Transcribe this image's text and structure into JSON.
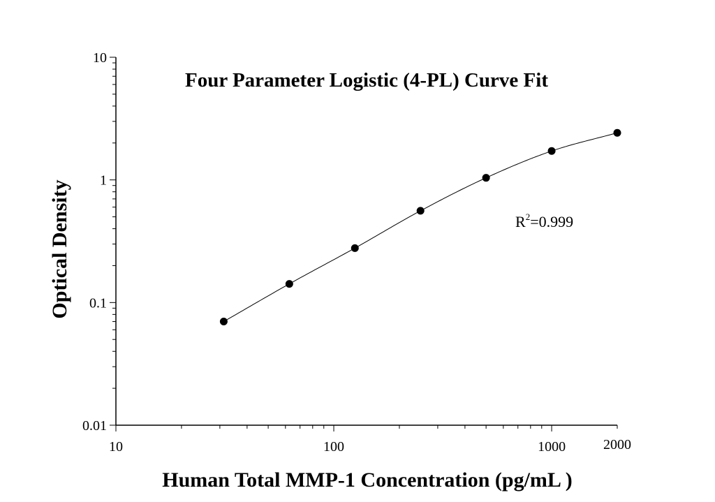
{
  "chart_data": {
    "type": "scatter",
    "title": "Four Parameter Logistic (4-PL) Curve Fit",
    "xlabel": "Human Total MMP-1 Concentration (pg/mL )",
    "ylabel": "Optical Density",
    "xscale": "log",
    "yscale": "log",
    "xlim": [
      10,
      2000
    ],
    "ylim": [
      0.01,
      10
    ],
    "x_tick_labels": [
      "10",
      "100",
      "1000",
      "2000"
    ],
    "y_tick_labels": [
      "0.01",
      "0.1",
      "1",
      "10"
    ],
    "series": [
      {
        "x": [
          31.25,
          62.5,
          125,
          250,
          500,
          1000,
          2000
        ],
        "y": [
          0.07,
          0.142,
          0.278,
          0.56,
          1.04,
          1.72,
          2.42
        ]
      }
    ],
    "fit_curve": "4-PL",
    "annotation": {
      "r_label": "R",
      "r_superscript": "2",
      "r_value": "=0.999"
    },
    "grid": false,
    "legend": "none",
    "colors": {
      "points": "#000000",
      "line": "#000000"
    }
  }
}
